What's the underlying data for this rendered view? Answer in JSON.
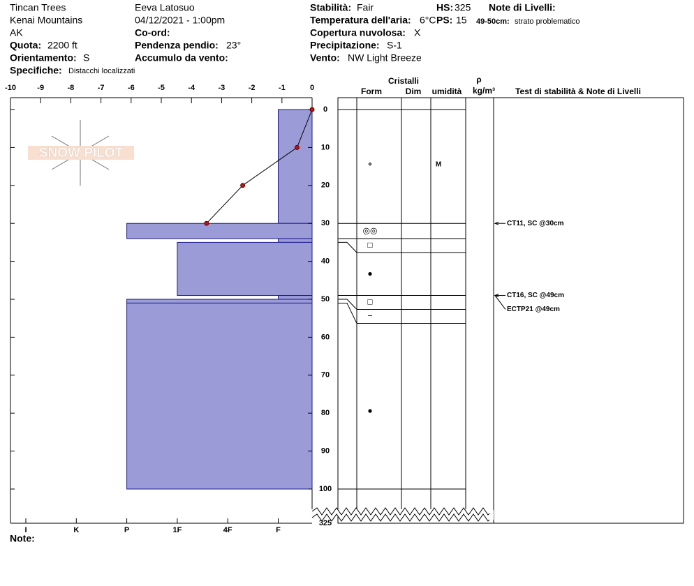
{
  "header": {
    "location": "Tincan Trees",
    "range": "Kenai Mountains",
    "state": "AK",
    "elevation": {
      "label": "Quota:",
      "value": "2200 ft"
    },
    "aspect": {
      "label": "Orientamento:",
      "value": "S"
    },
    "specifics": {
      "label": "Specifiche:",
      "value": "Distacchi localizzati"
    },
    "observer": "Eeva Latosuo",
    "datetime": "04/12/2021 - 1:00pm",
    "coords": {
      "label": "Co-ord:"
    },
    "slope": {
      "label": "Pendenza pendio:",
      "value": "23°"
    },
    "wind_loading": {
      "label": "Accumulo da vento:"
    },
    "stability": {
      "label": "Stabilità:",
      "value": "Fair"
    },
    "air_temp": {
      "label": "Temperatura dell'aria:",
      "value": "6°C"
    },
    "sky": {
      "label": "Copertura nuvolosa:",
      "value": "X"
    },
    "precip": {
      "label": "Precipitazione:",
      "value": "S-1"
    },
    "wind": {
      "label": "Vento:",
      "value": "NW Light Breeze"
    },
    "hs": {
      "label": "HS:",
      "value": 325
    },
    "ps": {
      "label": "PS:",
      "value": 15
    },
    "layer_notes": {
      "label": "Note di Livelli:",
      "depth": "49-50cm:",
      "text": "strato problematico"
    },
    "logo": "SNOW PILOT"
  },
  "footer": {
    "note_label": "Note:"
  },
  "chart_data": {
    "type": "snow-profile",
    "columns": {
      "crystals": "Cristalli",
      "form": "Form",
      "size": "Dim",
      "moisture": "umidità",
      "density_symbol": "ρ",
      "density_unit": "kg/m³",
      "tests": "Test di stabilità & Note di Livelli"
    },
    "xlim": [
      -10,
      0
    ],
    "xticks": [
      -10,
      -9,
      -8,
      -7,
      -6,
      -5,
      -4,
      -3,
      -2,
      -1,
      0
    ],
    "ylim": [
      0,
      100
    ],
    "yticks": [
      0,
      10,
      20,
      30,
      40,
      50,
      60,
      70,
      80,
      90,
      100
    ],
    "hardness_scale": [
      "I",
      "K",
      "P",
      "1F",
      "4F",
      "F"
    ],
    "layer_color": "#9b9bd8",
    "temperature": {
      "color": "#b01818",
      "depth": [
        0,
        10,
        20,
        30
      ],
      "values": [
        0,
        -0.5,
        -2.3,
        -3.5
      ]
    },
    "layers": [
      {
        "top": 0,
        "bottom": 30,
        "hardness": "F",
        "form": "+",
        "moisture": "M"
      },
      {
        "top": 30,
        "bottom": 34,
        "hardness": "P",
        "form": "◎◎"
      },
      {
        "top": 34,
        "bottom": 35,
        "hardness": "F",
        "form": "□"
      },
      {
        "top": 35,
        "bottom": 49,
        "hardness": "1F",
        "form": "●"
      },
      {
        "top": 49,
        "bottom": 50,
        "hardness": "F",
        "form": "□"
      },
      {
        "top": 50,
        "bottom": 51,
        "hardness": "P",
        "form": "−"
      },
      {
        "top": 51,
        "bottom": 100,
        "hardness": "P",
        "form": "●"
      }
    ],
    "tests": [
      {
        "depth": 30,
        "label": "CT11, SC @30cm"
      },
      {
        "depth": 49,
        "label": "CT16, SC @49cm"
      },
      {
        "depth": 49,
        "label": "ECTP21 @49cm"
      }
    ]
  }
}
